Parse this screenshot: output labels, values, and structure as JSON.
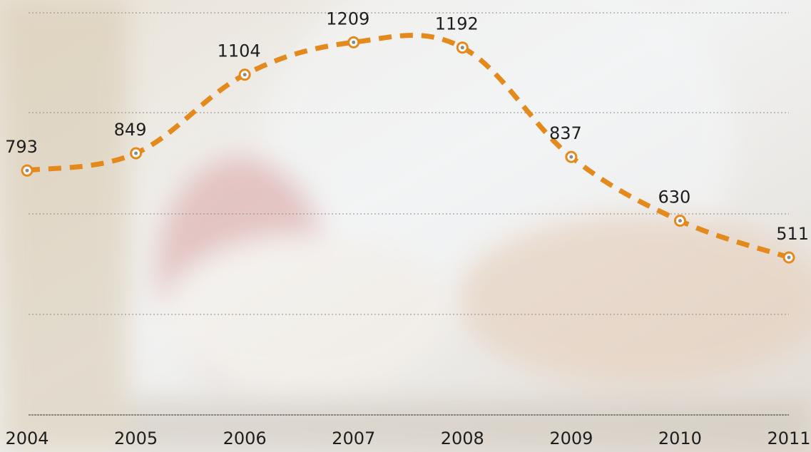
{
  "chart_data": {
    "type": "line",
    "categories": [
      "2004",
      "2005",
      "2006",
      "2007",
      "2008",
      "2009",
      "2010",
      "2011"
    ],
    "values": [
      793,
      849,
      1104,
      1209,
      1192,
      837,
      630,
      511
    ],
    "color": "#e48a1c",
    "ylim": [
      0,
      1300
    ],
    "grid": true
  }
}
